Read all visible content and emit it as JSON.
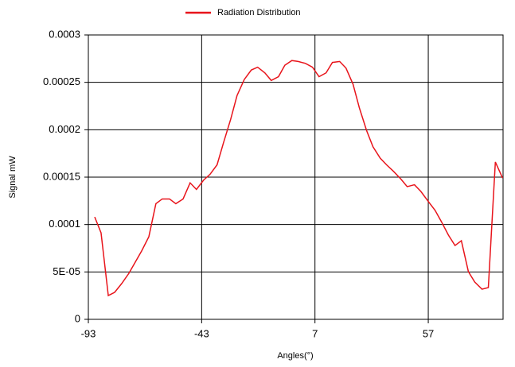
{
  "chart_data": {
    "type": "line",
    "legend": "top",
    "series": [
      {
        "name": "Radiation Distribution",
        "color": "#e8141b",
        "x": [
          -90.2,
          -87.4,
          -84.2,
          -81.4,
          -78.3,
          -75.1,
          -72.3,
          -69.5,
          -66.3,
          -63.2,
          -60.4,
          -57.2,
          -54.4,
          -51.2,
          -48.1,
          -45.3,
          -42.1,
          -39.3,
          -36.2,
          -33.4,
          -30.2,
          -27.4,
          -24.2,
          -21.1,
          -18.3,
          -15.1,
          -12.3,
          -9.1,
          -6.3,
          -3.2,
          -0.4,
          2.8,
          5.9,
          8.8,
          11.9,
          14.7,
          17.9,
          20.7,
          23.8,
          26.6,
          29.8,
          32.6,
          35.8,
          38.6,
          41.7,
          44.9,
          47.7,
          50.9,
          53.7,
          56.8,
          60.0,
          62.8,
          65.9,
          68.8,
          71.6,
          74.7,
          77.5,
          80.7,
          83.5,
          86.6,
          89.8
        ],
        "values": [
          0.000108,
          9.13e-05,
          2.51e-05,
          2.85e-05,
          3.77e-05,
          4.86e-05,
          6.03e-05,
          7.21e-05,
          8.72e-05,
          0.000122,
          0.000127,
          0.000127,
          0.000122,
          0.000127,
          0.000144,
          0.000137,
          0.000147,
          0.000153,
          0.000163,
          0.000186,
          0.000211,
          0.000236,
          0.000253,
          0.000263,
          0.000266,
          0.00026,
          0.000252,
          0.000256,
          0.000268,
          0.000273,
          0.000272,
          0.00027,
          0.000266,
          0.000256,
          0.00026,
          0.000271,
          0.000272,
          0.000265,
          0.000248,
          0.000223,
          0.000199,
          0.000182,
          0.00017,
          0.000163,
          0.000156,
          0.000148,
          0.00014,
          0.000142,
          0.000135,
          0.000125,
          0.000115,
          0.000103,
          8.88e-05,
          7.79e-05,
          8.29e-05,
          5.03e-05,
          3.94e-05,
          3.18e-05,
          3.35e-05,
          0.000166,
          0.000149
        ]
      }
    ],
    "x_label": "Angles(°)",
    "y_label": "Signal mW",
    "xlim": [
      -93,
      90
    ],
    "xticks": [
      -93,
      -43,
      7,
      57
    ],
    "ylim": [
      0,
      0.0003
    ],
    "yticks": [
      0,
      {
        "value": 5e-05,
        "label": "5E-05"
      },
      0.0001,
      0.00015,
      0.0002,
      0.00025,
      0.0003
    ],
    "grid": true
  }
}
